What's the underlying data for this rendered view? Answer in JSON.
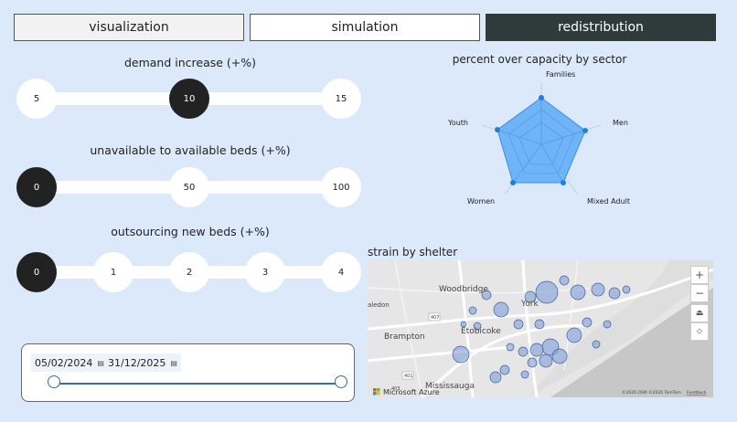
{
  "tabs": [
    {
      "label": "visualization"
    },
    {
      "label": "simulation"
    },
    {
      "label": "redistribution"
    }
  ],
  "sliders": {
    "demand": {
      "label": "demand increase (+%)",
      "options": [
        "5",
        "10",
        "15"
      ],
      "selected": "10"
    },
    "beds": {
      "label": "unavailable to available beds (+%)",
      "options": [
        "0",
        "50",
        "100"
      ],
      "selected": "0"
    },
    "outsourcing": {
      "label": "outsourcing new beds (+%)",
      "options": [
        "0",
        "1",
        "2",
        "3",
        "4"
      ],
      "selected": "0"
    }
  },
  "date_range": {
    "start": "05/02/2024",
    "end": "31/12/2025",
    "calendar_icon": "calendar-icon"
  },
  "radar": {
    "title": "percent over capacity by sector",
    "axes": [
      "Families",
      "Men",
      "Mixed Adult",
      "Women",
      "Youth"
    ],
    "fill_color": "#5aaaf5",
    "point_color": "#1f7fe0"
  },
  "map": {
    "title": "strain by shelter",
    "places": [
      "Woodbridge",
      "York",
      "Brampton",
      "Etobicoke",
      "Mississauga",
      "aledon"
    ],
    "highways": [
      "407",
      "401",
      "403"
    ],
    "logo": "Microsoft Azure",
    "attribution": "©2026 OSM ©2026 TomTom",
    "feedback": "Feedback",
    "controls": [
      "+",
      "−",
      "⏏",
      "⬦"
    ],
    "bubble_color": "#7f9fd8"
  }
}
